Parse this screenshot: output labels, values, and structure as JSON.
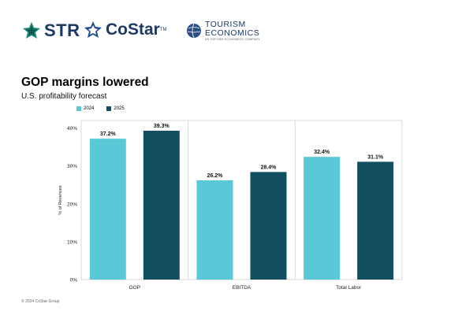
{
  "logos": {
    "str": "STR",
    "costar": "CoStar",
    "costar_tm": "TM",
    "te_line1": "TOURISM",
    "te_line2": "ECONOMICS",
    "te_tagline": "AN OXFORD ECONOMICS COMPANY"
  },
  "footer": "© 2024 CoStar Group",
  "chart_data": {
    "type": "bar",
    "title": "GOP margins lowered",
    "subtitle": "U.S. profitability forecast",
    "ylabel": "% of Revenues",
    "xlabel": "",
    "ylim": [
      0,
      42
    ],
    "yticks": [
      0,
      10,
      20,
      30,
      40
    ],
    "ytick_labels": [
      "0%",
      "10%",
      "20%",
      "30%",
      "40%"
    ],
    "categories": [
      "GOP",
      "EBITDA",
      "Total Labor"
    ],
    "series": [
      {
        "name": "2024",
        "color": "#5bc8d8",
        "values": [
          37.2,
          26.2,
          32.4
        ],
        "labels": [
          "37.2%",
          "26.2%",
          "32.4%"
        ]
      },
      {
        "name": "2025",
        "color": "#124f60",
        "values": [
          39.3,
          28.4,
          31.1
        ],
        "labels": [
          "39.3%",
          "28.4%",
          "31.1%"
        ]
      }
    ],
    "legend_position": "top-left",
    "grid": false
  }
}
